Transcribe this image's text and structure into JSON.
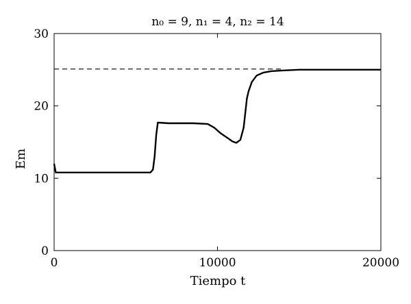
{
  "chart_data": {
    "type": "line",
    "title": "n₀ = 9,  n₁ = 4,  n₂ = 14",
    "xlabel": "Tiempo t",
    "ylabel": "Em",
    "xlim": [
      0,
      20000
    ],
    "ylim": [
      0,
      30
    ],
    "x_ticks": [
      0,
      10000,
      20000
    ],
    "y_ticks": [
      0,
      10,
      20,
      30
    ],
    "grid": false,
    "legend": "none",
    "series": [
      {
        "style": "solid",
        "color": "#000000",
        "x": [
          0,
          100,
          5900,
          6050,
          6150,
          6250,
          6350,
          7000,
          8500,
          9400,
          9800,
          10200,
          10600,
          10900,
          11150,
          11400,
          11600,
          11800,
          11900,
          12100,
          12400,
          12800,
          13300,
          14000,
          15000,
          16000,
          18000,
          20000
        ],
        "y": [
          12.0,
          10.8,
          10.8,
          11.2,
          13.0,
          16.0,
          17.7,
          17.6,
          17.6,
          17.5,
          17.0,
          16.2,
          15.6,
          15.1,
          14.9,
          15.3,
          17.0,
          21.0,
          22.0,
          23.3,
          24.2,
          24.6,
          24.8,
          24.9,
          25.0,
          25.0,
          25.0,
          25.0
        ]
      },
      {
        "style": "dashed",
        "color": "#000000",
        "x": [
          0,
          14000
        ],
        "y": [
          25.1,
          25.1
        ]
      }
    ]
  }
}
